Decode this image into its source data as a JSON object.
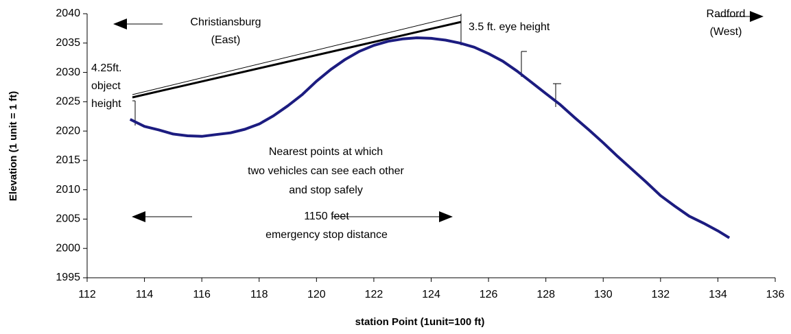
{
  "chart_data": {
    "type": "line",
    "xlabel": "station Point (1unit=100 ft)",
    "ylabel": "Elevation (1 unit = 1 ft)",
    "xlim": [
      112,
      136
    ],
    "xticks": [
      112,
      114,
      116,
      118,
      120,
      122,
      124,
      126,
      128,
      130,
      132,
      134,
      136
    ],
    "ylim": [
      1995,
      2040
    ],
    "yticks": [
      1995,
      2000,
      2005,
      2010,
      2015,
      2020,
      2025,
      2030,
      2035,
      2040
    ],
    "grid": false,
    "series": [
      {
        "name": "Elevation",
        "color": "#1c1c80",
        "x": [
          113.5,
          114,
          114.5,
          115,
          115.5,
          116,
          116.5,
          117,
          117.5,
          118,
          118.5,
          119,
          119.5,
          120,
          120.5,
          121,
          121.5,
          122,
          122.5,
          123,
          123.5,
          124,
          124.5,
          125,
          125.5,
          126,
          126.5,
          127,
          127.5,
          128,
          128.5,
          129,
          129.5,
          130,
          130.5,
          131,
          131.5,
          132,
          132.5,
          133,
          133.5,
          134,
          134.4
        ],
        "values": [
          2022,
          2020.8,
          2020.2,
          2019.5,
          2019.2,
          2019.1,
          2019.4,
          2019.7,
          2020.3,
          2021.2,
          2022.6,
          2024.3,
          2026.2,
          2028.5,
          2030.5,
          2032.2,
          2033.6,
          2034.6,
          2035.3,
          2035.7,
          2035.9,
          2035.8,
          2035.5,
          2035,
          2034.3,
          2033.2,
          2031.9,
          2030.2,
          2028.3,
          2026.4,
          2024.5,
          2022.3,
          2020.2,
          2018,
          2015.7,
          2013.5,
          2011.3,
          2009,
          2007.2,
          2005.5,
          2004.3,
          2003,
          2001.8
        ]
      }
    ],
    "annotations": [
      {
        "lines": [
          "Christiansburg",
          "(East)"
        ]
      },
      {
        "lines": [
          "Radford",
          "(West)"
        ]
      },
      {
        "lines": [
          "3.5 ft. eye height"
        ]
      },
      {
        "lines": [
          "4.25ft.",
          "object",
          "height"
        ]
      },
      {
        "lines": [
          "Nearest points at which",
          "two vehicles can see each other",
          "and stop safely"
        ]
      },
      {
        "lines": [
          "1150 feet",
          "emergency stop distance"
        ]
      }
    ]
  }
}
